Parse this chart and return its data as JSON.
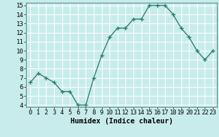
{
  "x": [
    0,
    1,
    2,
    3,
    4,
    5,
    6,
    7,
    8,
    9,
    10,
    11,
    12,
    13,
    14,
    15,
    16,
    17,
    18,
    19,
    20,
    21,
    22,
    23
  ],
  "y": [
    6.5,
    7.5,
    7.0,
    6.5,
    5.5,
    5.5,
    4.0,
    4.0,
    7.0,
    9.5,
    11.5,
    12.5,
    12.5,
    13.5,
    13.5,
    15.0,
    15.0,
    15.0,
    14.0,
    12.5,
    11.5,
    10.0,
    9.0,
    10.0
  ],
  "line_color": "#2d7d6e",
  "marker": "+",
  "bg_color": "#c8ecec",
  "grid_color": "#ffffff",
  "xlabel": "Humidex (Indice chaleur)",
  "xlim": [
    -0.5,
    23.5
  ],
  "ylim": [
    3.8,
    15.3
  ],
  "yticks": [
    4,
    5,
    6,
    7,
    8,
    9,
    10,
    11,
    12,
    13,
    14,
    15
  ],
  "xticks": [
    0,
    1,
    2,
    3,
    4,
    5,
    6,
    7,
    8,
    9,
    10,
    11,
    12,
    13,
    14,
    15,
    16,
    17,
    18,
    19,
    20,
    21,
    22,
    23
  ],
  "xlabel_fontsize": 7.5,
  "tick_fontsize": 6.5,
  "line_width": 1.0,
  "marker_size": 4.5
}
